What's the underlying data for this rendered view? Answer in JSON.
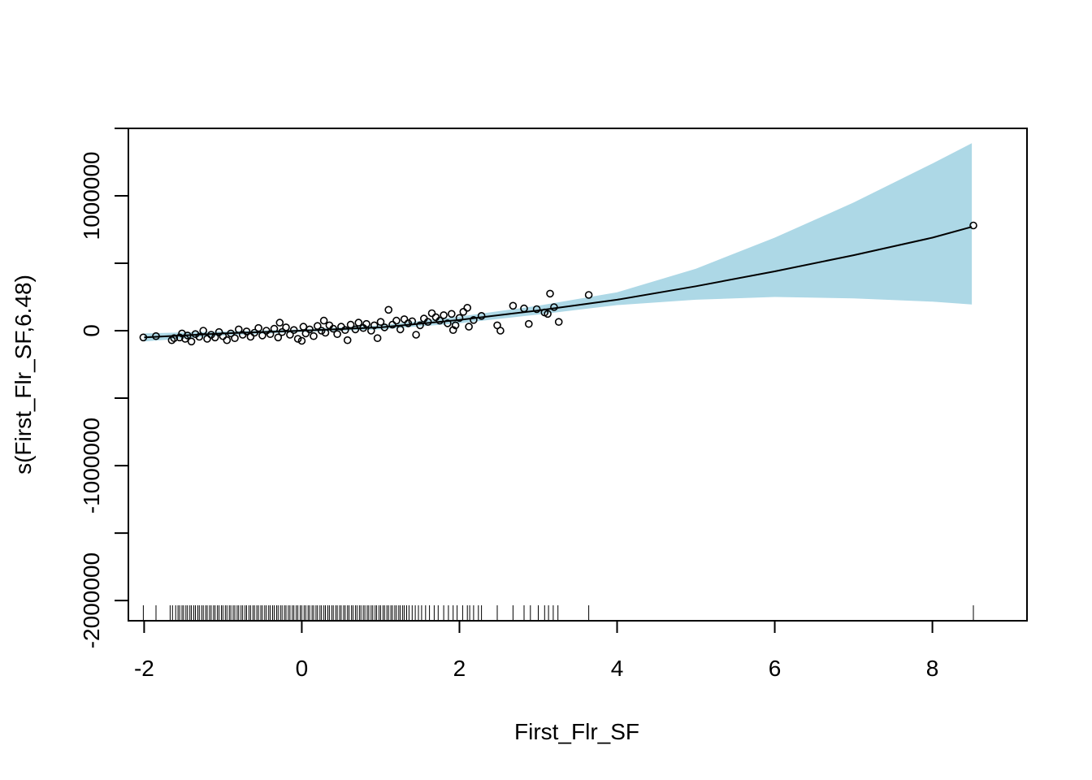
{
  "chart_data": {
    "type": "scatter",
    "title": "",
    "xlabel": "First_Flr_SF",
    "ylabel": "s(First_Flr_SF,6.48)",
    "xlim": [
      -2.2,
      9.2
    ],
    "ylim": [
      -2150000,
      1500000
    ],
    "x_ticks": [
      -2,
      0,
      2,
      4,
      6,
      8
    ],
    "x_tick_labels": [
      "-2",
      "0",
      "2",
      "4",
      "6",
      "8"
    ],
    "y_ticks": [
      -2000000,
      -1500000,
      -1000000,
      -500000,
      0,
      500000,
      1000000,
      1500000
    ],
    "y_tick_labels": [
      "-2000000",
      "",
      "-1000000",
      "",
      "0",
      "",
      "1000000",
      ""
    ],
    "grid": false,
    "colors": {
      "band": "#add8e6",
      "line": "#000000",
      "points": "#000000"
    },
    "smooth_fit": {
      "x": [
        -2.0,
        -1.0,
        0.0,
        1.0,
        2.0,
        3.0,
        4.0,
        5.0,
        6.0,
        7.0,
        8.0,
        8.5
      ],
      "y": [
        -50000,
        -20000,
        0,
        25000,
        80000,
        150000,
        230000,
        330000,
        440000,
        560000,
        690000,
        770000
      ],
      "lower": [
        -80000,
        -35000,
        -10000,
        10000,
        55000,
        120000,
        190000,
        230000,
        250000,
        240000,
        215000,
        195000
      ],
      "upper": [
        -20000,
        -5000,
        10000,
        40000,
        105000,
        185000,
        285000,
        460000,
        690000,
        950000,
        1240000,
        1390000
      ]
    },
    "residual_points": [
      {
        "x": -2.01,
        "y": -50000
      },
      {
        "x": -1.85,
        "y": -40000
      },
      {
        "x": -1.65,
        "y": -70000
      },
      {
        "x": -1.62,
        "y": -55000
      },
      {
        "x": -1.55,
        "y": -50000
      },
      {
        "x": -1.52,
        "y": -20000
      },
      {
        "x": -1.48,
        "y": -60000
      },
      {
        "x": -1.45,
        "y": -35000
      },
      {
        "x": -1.4,
        "y": -80000
      },
      {
        "x": -1.35,
        "y": -25000
      },
      {
        "x": -1.3,
        "y": -45000
      },
      {
        "x": -1.25,
        "y": 0
      },
      {
        "x": -1.2,
        "y": -60000
      },
      {
        "x": -1.15,
        "y": -30000
      },
      {
        "x": -1.1,
        "y": -50000
      },
      {
        "x": -1.05,
        "y": -10000
      },
      {
        "x": -1.0,
        "y": -40000
      },
      {
        "x": -0.95,
        "y": -70000
      },
      {
        "x": -0.9,
        "y": -20000
      },
      {
        "x": -0.85,
        "y": -55000
      },
      {
        "x": -0.8,
        "y": 10000
      },
      {
        "x": -0.75,
        "y": -30000
      },
      {
        "x": -0.7,
        "y": -5000
      },
      {
        "x": -0.65,
        "y": -45000
      },
      {
        "x": -0.6,
        "y": -15000
      },
      {
        "x": -0.55,
        "y": 20000
      },
      {
        "x": -0.5,
        "y": -35000
      },
      {
        "x": -0.45,
        "y": 0
      },
      {
        "x": -0.4,
        "y": -25000
      },
      {
        "x": -0.35,
        "y": 15000
      },
      {
        "x": -0.3,
        "y": -50000
      },
      {
        "x": -0.28,
        "y": 60000
      },
      {
        "x": -0.25,
        "y": -10000
      },
      {
        "x": -0.2,
        "y": 25000
      },
      {
        "x": -0.15,
        "y": -30000
      },
      {
        "x": -0.1,
        "y": 5000
      },
      {
        "x": -0.05,
        "y": -60000
      },
      {
        "x": 0.0,
        "y": -75000
      },
      {
        "x": 0.02,
        "y": 30000
      },
      {
        "x": 0.05,
        "y": -20000
      },
      {
        "x": 0.1,
        "y": 10000
      },
      {
        "x": 0.15,
        "y": -40000
      },
      {
        "x": 0.2,
        "y": 35000
      },
      {
        "x": 0.25,
        "y": 0
      },
      {
        "x": 0.28,
        "y": 75000
      },
      {
        "x": 0.3,
        "y": -15000
      },
      {
        "x": 0.35,
        "y": 40000
      },
      {
        "x": 0.4,
        "y": 15000
      },
      {
        "x": 0.45,
        "y": -25000
      },
      {
        "x": 0.5,
        "y": 30000
      },
      {
        "x": 0.55,
        "y": 5000
      },
      {
        "x": 0.58,
        "y": -70000
      },
      {
        "x": 0.62,
        "y": 45000
      },
      {
        "x": 0.68,
        "y": 10000
      },
      {
        "x": 0.72,
        "y": 60000
      },
      {
        "x": 0.78,
        "y": 20000
      },
      {
        "x": 0.82,
        "y": 50000
      },
      {
        "x": 0.88,
        "y": 0
      },
      {
        "x": 0.92,
        "y": 40000
      },
      {
        "x": 0.96,
        "y": -55000
      },
      {
        "x": 1.0,
        "y": 65000
      },
      {
        "x": 1.05,
        "y": 25000
      },
      {
        "x": 1.1,
        "y": 155000
      },
      {
        "x": 1.15,
        "y": 45000
      },
      {
        "x": 1.2,
        "y": 75000
      },
      {
        "x": 1.25,
        "y": 10000
      },
      {
        "x": 1.3,
        "y": 85000
      },
      {
        "x": 1.35,
        "y": 55000
      },
      {
        "x": 1.4,
        "y": 70000
      },
      {
        "x": 1.45,
        "y": -30000
      },
      {
        "x": 1.5,
        "y": 40000
      },
      {
        "x": 1.55,
        "y": 90000
      },
      {
        "x": 1.6,
        "y": 65000
      },
      {
        "x": 1.65,
        "y": 130000
      },
      {
        "x": 1.7,
        "y": 100000
      },
      {
        "x": 1.75,
        "y": 75000
      },
      {
        "x": 1.8,
        "y": 115000
      },
      {
        "x": 1.85,
        "y": 55000
      },
      {
        "x": 1.9,
        "y": 125000
      },
      {
        "x": 1.92,
        "y": 5000
      },
      {
        "x": 1.95,
        "y": 40000
      },
      {
        "x": 2.0,
        "y": 95000
      },
      {
        "x": 2.05,
        "y": 140000
      },
      {
        "x": 2.1,
        "y": 170000
      },
      {
        "x": 2.12,
        "y": 30000
      },
      {
        "x": 2.18,
        "y": 80000
      },
      {
        "x": 2.28,
        "y": 110000
      },
      {
        "x": 2.48,
        "y": 40000
      },
      {
        "x": 2.52,
        "y": 0
      },
      {
        "x": 2.68,
        "y": 185000
      },
      {
        "x": 2.82,
        "y": 165000
      },
      {
        "x": 2.88,
        "y": 50000
      },
      {
        "x": 2.98,
        "y": 160000
      },
      {
        "x": 3.08,
        "y": 135000
      },
      {
        "x": 3.12,
        "y": 125000
      },
      {
        "x": 3.15,
        "y": 275000
      },
      {
        "x": 3.2,
        "y": 175000
      },
      {
        "x": 3.26,
        "y": 65000
      },
      {
        "x": 3.64,
        "y": 265000
      },
      {
        "x": 8.52,
        "y": 780000
      }
    ],
    "rug_x": [
      -2.01,
      -1.85,
      -1.67,
      -1.64,
      -1.6,
      -1.57,
      -1.55,
      -1.52,
      -1.5,
      -1.47,
      -1.45,
      -1.42,
      -1.4,
      -1.37,
      -1.35,
      -1.32,
      -1.3,
      -1.27,
      -1.25,
      -1.22,
      -1.2,
      -1.17,
      -1.15,
      -1.12,
      -1.1,
      -1.07,
      -1.05,
      -1.02,
      -1.0,
      -0.97,
      -0.95,
      -0.92,
      -0.9,
      -0.87,
      -0.85,
      -0.82,
      -0.8,
      -0.77,
      -0.75,
      -0.72,
      -0.7,
      -0.67,
      -0.65,
      -0.62,
      -0.6,
      -0.57,
      -0.55,
      -0.52,
      -0.5,
      -0.47,
      -0.45,
      -0.42,
      -0.4,
      -0.37,
      -0.35,
      -0.32,
      -0.3,
      -0.27,
      -0.25,
      -0.22,
      -0.2,
      -0.17,
      -0.15,
      -0.12,
      -0.1,
      -0.07,
      -0.05,
      -0.02,
      0.0,
      0.03,
      0.05,
      0.08,
      0.1,
      0.13,
      0.15,
      0.18,
      0.2,
      0.23,
      0.25,
      0.28,
      0.3,
      0.33,
      0.35,
      0.38,
      0.4,
      0.43,
      0.45,
      0.48,
      0.5,
      0.53,
      0.55,
      0.58,
      0.6,
      0.63,
      0.65,
      0.68,
      0.7,
      0.73,
      0.75,
      0.78,
      0.8,
      0.83,
      0.85,
      0.88,
      0.9,
      0.93,
      0.95,
      0.98,
      1.0,
      1.03,
      1.05,
      1.08,
      1.1,
      1.13,
      1.15,
      1.18,
      1.2,
      1.23,
      1.25,
      1.28,
      1.3,
      1.33,
      1.36,
      1.4,
      1.44,
      1.48,
      1.52,
      1.57,
      1.62,
      1.68,
      1.73,
      1.8,
      1.86,
      1.92,
      1.97,
      2.04,
      2.1,
      2.13,
      2.18,
      2.24,
      2.28,
      2.48,
      2.68,
      2.82,
      2.9,
      3.0,
      3.08,
      3.13,
      3.19,
      3.25,
      3.64,
      8.52
    ]
  }
}
